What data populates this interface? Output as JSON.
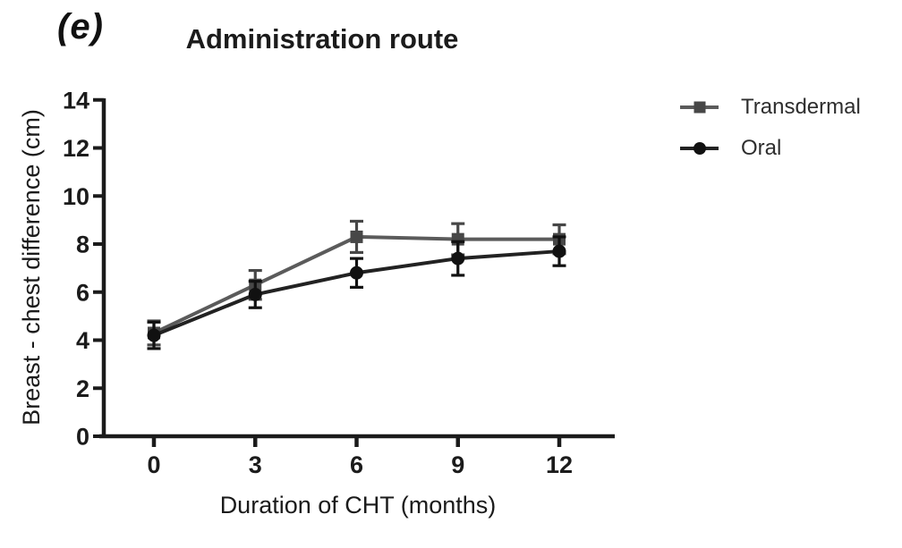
{
  "chart_data": {
    "type": "line",
    "panel_label": "(e)",
    "title": "Administration route",
    "xlabel": "Duration of CHT (months)",
    "ylabel": "Breast - chest difference (cm)",
    "x": [
      0,
      3,
      6,
      9,
      12
    ],
    "xticks": [
      0,
      3,
      6,
      9,
      12
    ],
    "yticks": [
      0,
      2,
      4,
      6,
      8,
      10,
      12,
      14
    ],
    "xlim": [
      -1.6,
      13.6
    ],
    "ylim": [
      0,
      14
    ],
    "grid": false,
    "legend_position": "right",
    "axis_color": "#1b1b1b",
    "error_bars": true,
    "series": [
      {
        "name": "Transdermal",
        "marker": "square",
        "line_color": "#5b5b5b",
        "marker_color": "#474747",
        "values": [
          4.3,
          6.3,
          8.3,
          8.2,
          8.2
        ],
        "errors": [
          0.5,
          0.6,
          0.65,
          0.65,
          0.6
        ]
      },
      {
        "name": "Oral",
        "marker": "circle",
        "line_color": "#222222",
        "marker_color": "#111111",
        "values": [
          4.2,
          5.9,
          6.8,
          7.4,
          7.7
        ],
        "errors": [
          0.55,
          0.55,
          0.6,
          0.7,
          0.6
        ]
      }
    ]
  }
}
